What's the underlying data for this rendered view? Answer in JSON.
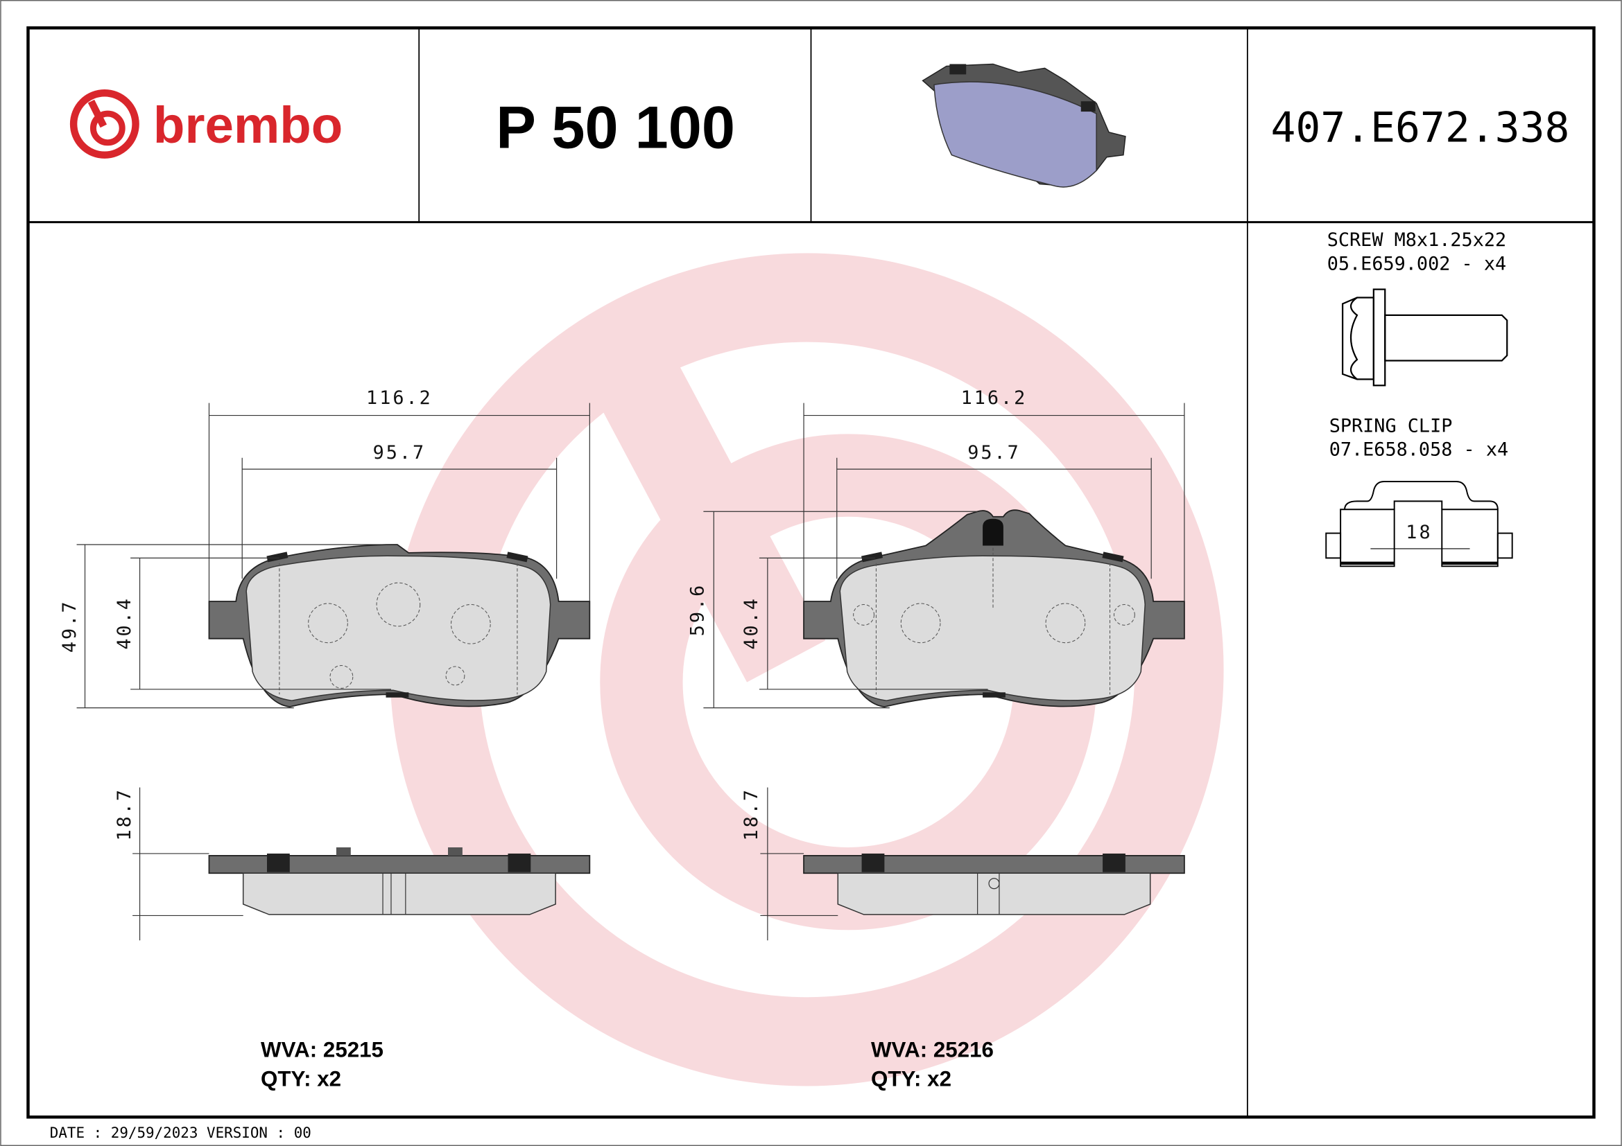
{
  "header": {
    "brand": "brembo",
    "part_number": "P 50 100",
    "code": "407.E672.338"
  },
  "colors": {
    "brand_red": "#d9262c",
    "watermark": "#f8dadd",
    "pad_preview": "#9c9ec9"
  },
  "accessories": [
    {
      "name": "SCREW M8x1.25x22",
      "code": "05.E659.002 - x4"
    },
    {
      "name": "SPRING CLIP",
      "code": "07.E658.058 - x4",
      "dimension": "18"
    }
  ],
  "pads": [
    {
      "width_overall": "116.2",
      "width_inner": "95.7",
      "height_overall": "49.7",
      "height_inner": "40.4",
      "thickness": "18.7",
      "wva": "WVA: 25215",
      "qty": "QTY: x2"
    },
    {
      "width_overall": "116.2",
      "width_inner": "95.7",
      "height_overall": "59.6",
      "height_inner": "40.4",
      "thickness": "18.7",
      "wva": "WVA: 25216",
      "qty": "QTY: x2"
    }
  ],
  "footer": {
    "text": "DATE : 29/59/2023 VERSION : 00"
  }
}
